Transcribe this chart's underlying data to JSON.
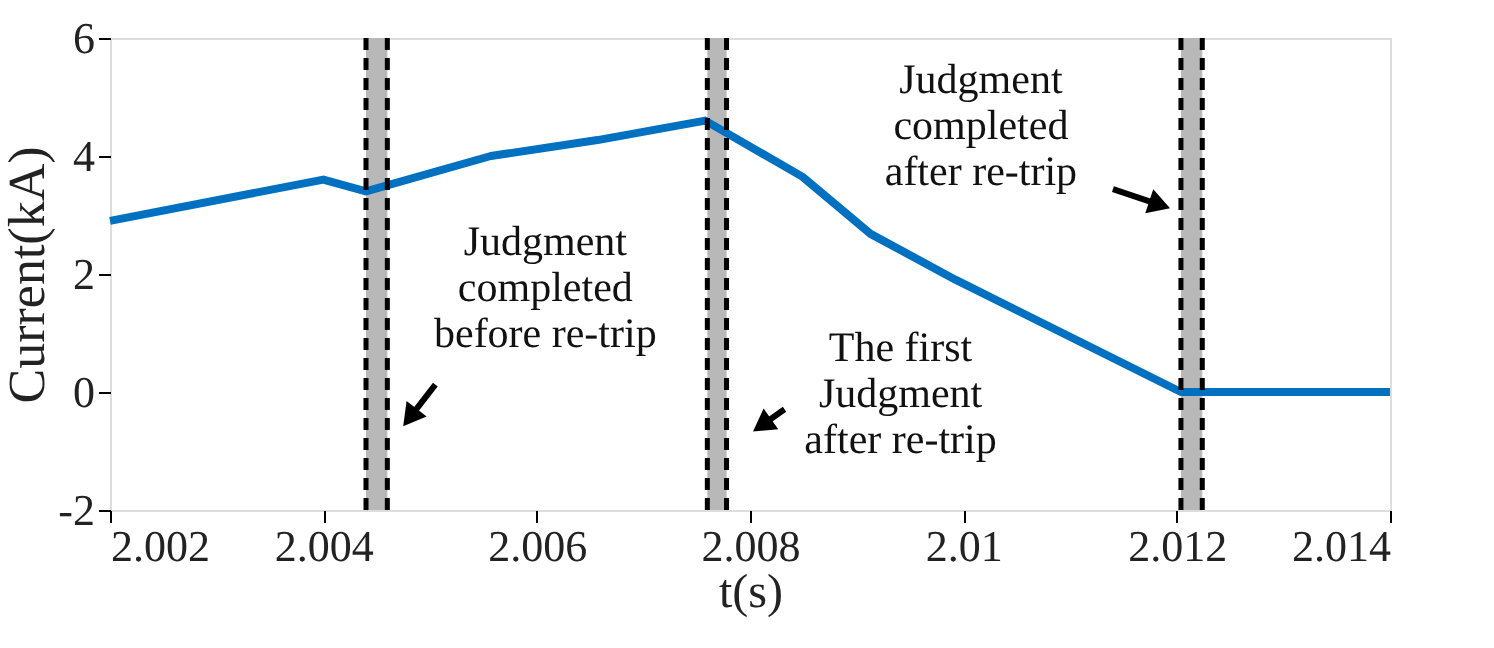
{
  "chart_data": {
    "type": "line",
    "xlabel": "t(s)",
    "ylabel": "Current(kA)",
    "x": [
      2.002,
      2.004,
      2.0044,
      2.00557,
      2.00657,
      2.00758,
      2.00849,
      2.00913,
      2.00993,
      2.01204,
      2.014
    ],
    "series": [
      {
        "color": "#0070c0",
        "values": [
          2.9,
          3.6,
          3.4,
          4.0,
          4.27,
          4.6,
          3.65,
          2.68,
          1.9,
          0,
          0
        ]
      }
    ],
    "xlim": [
      2.002,
      2.014
    ],
    "xticks": [
      2.002,
      2.004,
      2.006,
      2.008,
      2.01,
      2.012,
      2.014
    ],
    "ylim": [
      -2,
      6
    ],
    "yticks": [
      -2,
      0,
      2,
      4,
      6
    ],
    "grid": false,
    "legend": false,
    "marker": "none",
    "line_style": "solid",
    "bands": [
      {
        "axis": "x",
        "from": 2.0044,
        "to": 2.0046,
        "color": "#b8b8b8"
      },
      {
        "axis": "x",
        "from": 2.0076,
        "to": 2.00778,
        "color": "#b8b8b8"
      },
      {
        "axis": "x",
        "from": 2.01204,
        "to": 2.01224,
        "color": "#b8b8b8"
      }
    ],
    "ref_lines": [
      {
        "axis": "x",
        "value": 2.0044,
        "color": "#000000",
        "line_style": "dashed"
      },
      {
        "axis": "x",
        "value": 2.0046,
        "color": "#000000",
        "line_style": "dashed"
      },
      {
        "axis": "x",
        "value": 2.0076,
        "color": "#000000",
        "line_style": "dashed"
      },
      {
        "axis": "x",
        "value": 2.00778,
        "color": "#000000",
        "line_style": "dashed"
      },
      {
        "axis": "x",
        "value": 2.01204,
        "color": "#000000",
        "line_style": "dashed"
      },
      {
        "axis": "x",
        "value": 2.01224,
        "color": "#000000",
        "line_style": "dashed"
      }
    ],
    "annotations": [
      {
        "text": "Judgment\ncompleted\nbefore re-trip",
        "x": 2.0046,
        "y": -0.62
      },
      {
        "text": "The first\nJudgment\nafter re-trip",
        "x": 2.00778,
        "y": -0.7
      },
      {
        "text": "Judgment\ncompleted\nafter re-trip",
        "x": 2.01204,
        "y": 3.1
      }
    ]
  }
}
